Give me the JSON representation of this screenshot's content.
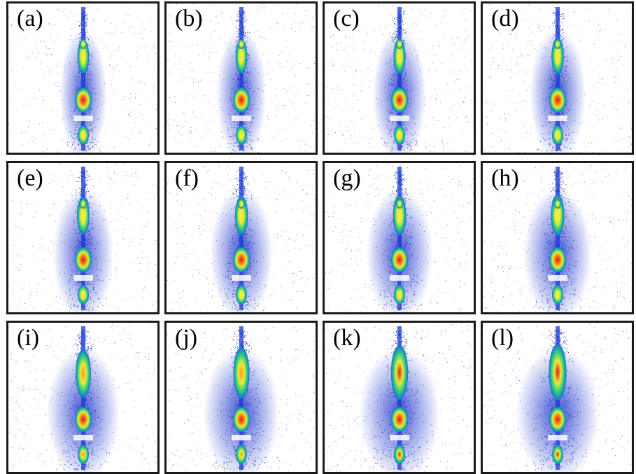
{
  "figure": {
    "panels": [
      {
        "label": "(a)",
        "spread": 0.25,
        "peak_top": 0.42,
        "peak_top_color": "yellow",
        "has_gap": true,
        "tail": 0.6
      },
      {
        "label": "(b)",
        "spread": 0.28,
        "peak_top": 0.42,
        "peak_top_color": "yellow",
        "has_gap": true,
        "tail": 0.65
      },
      {
        "label": "(c)",
        "spread": 0.33,
        "peak_top": 0.45,
        "peak_top_color": "yellow",
        "has_gap": true,
        "tail": 0.75
      },
      {
        "label": "(d)",
        "spread": 0.36,
        "peak_top": 0.47,
        "peak_top_color": "yellow",
        "has_gap": true,
        "tail": 0.8
      },
      {
        "label": "(e)",
        "spread": 0.42,
        "peak_top": 0.5,
        "peak_top_color": "yellow",
        "has_gap": true,
        "tail": 0.9
      },
      {
        "label": "(f)",
        "spread": 0.45,
        "peak_top": 0.52,
        "peak_top_color": "yellow",
        "has_gap": true,
        "tail": 0.9
      },
      {
        "label": "(g)",
        "spread": 0.5,
        "peak_top": 0.55,
        "peak_top_color": "yellow",
        "has_gap": true,
        "tail": 0.95
      },
      {
        "label": "(h)",
        "spread": 0.52,
        "peak_top": 0.58,
        "peak_top_color": "yellow",
        "has_gap": true,
        "tail": 0.95
      },
      {
        "label": "(i)",
        "spread": 0.58,
        "peak_top": 0.75,
        "peak_top_color": "orange",
        "has_gap": true,
        "tail": 1.0
      },
      {
        "label": "(j)",
        "spread": 0.62,
        "peak_top": 0.82,
        "peak_top_color": "orange",
        "has_gap": true,
        "tail": 1.0
      },
      {
        "label": "(k)",
        "spread": 0.68,
        "peak_top": 0.9,
        "peak_top_color": "red",
        "has_gap": true,
        "tail": 1.0
      },
      {
        "label": "(l)",
        "spread": 0.72,
        "peak_top": 0.95,
        "peak_top_color": "red",
        "has_gap": true,
        "tail": 1.0
      }
    ]
  }
}
